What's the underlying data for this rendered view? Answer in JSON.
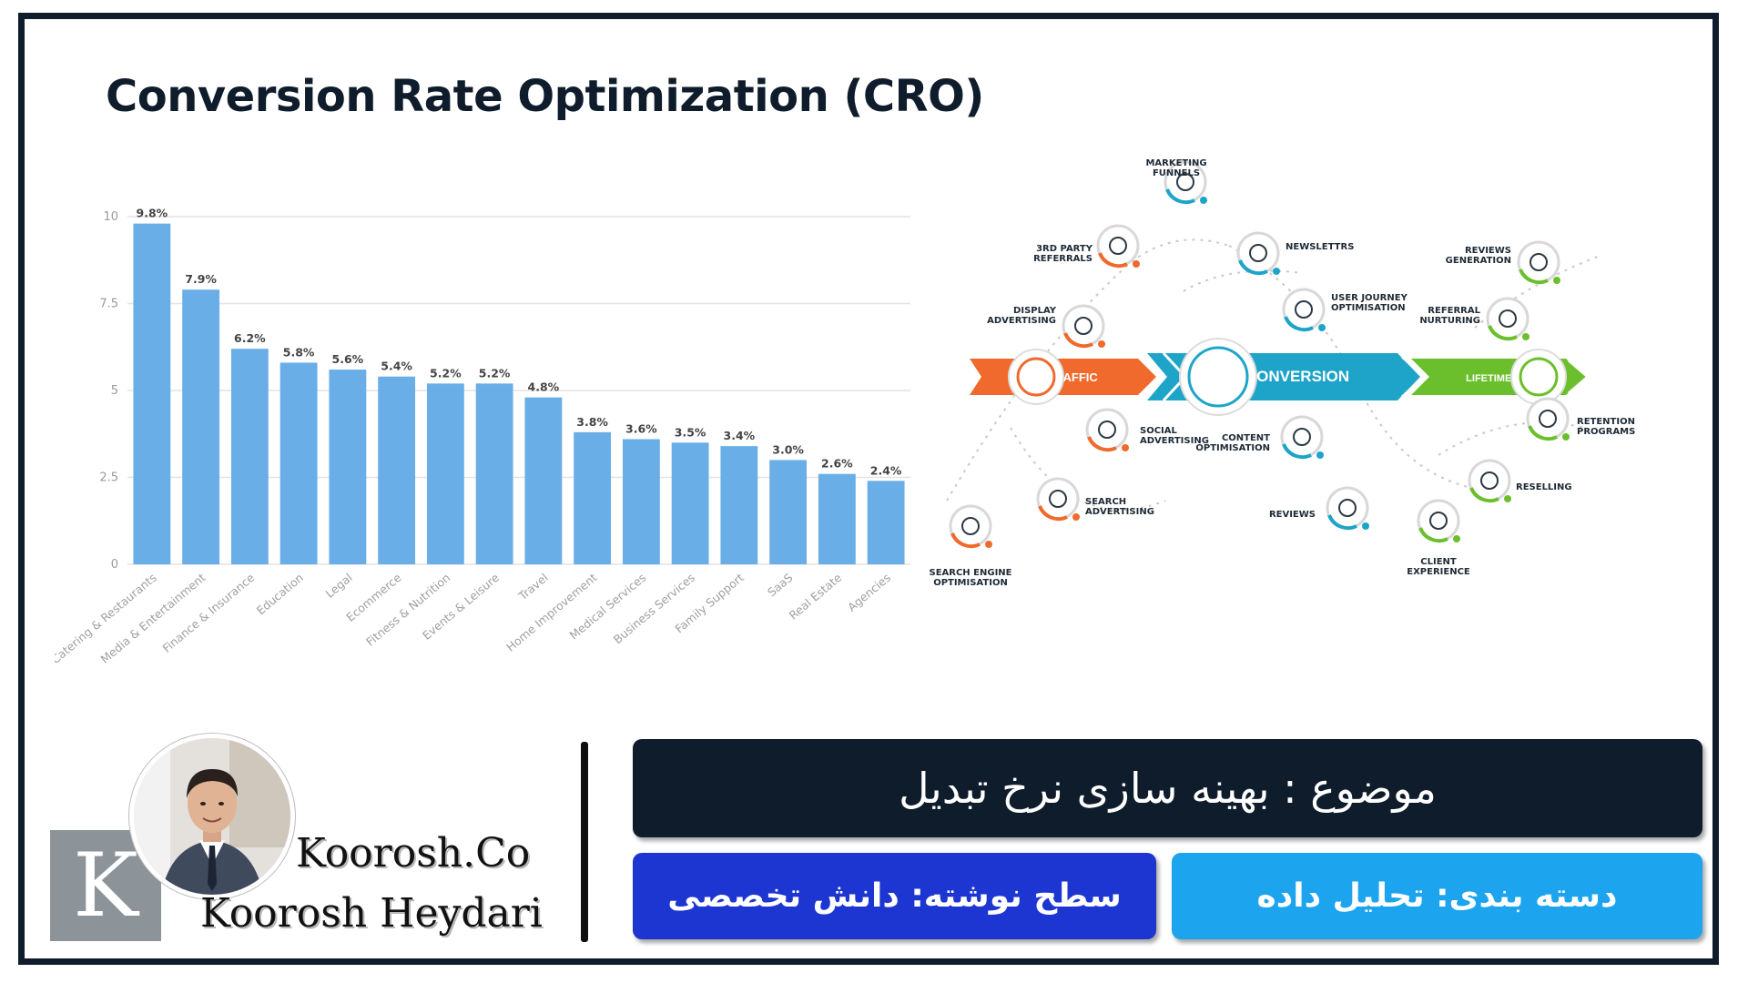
{
  "page": {
    "title": "Conversion Rate Optimization (CRO)"
  },
  "chart_data": {
    "type": "bar",
    "categories": [
      "Catering & Restaurants",
      "Media & Entertainment",
      "Finance & Insurance",
      "Education",
      "Legal",
      "Ecommerce",
      "Fitness & Nutrition",
      "Events & Leisure",
      "Travel",
      "Home Improvement",
      "Medical Services",
      "Business Services",
      "Family Support",
      "SaaS",
      "Real Estate",
      "Agencies"
    ],
    "values": [
      9.8,
      7.9,
      6.2,
      5.8,
      5.6,
      5.4,
      5.2,
      5.2,
      4.8,
      3.8,
      3.6,
      3.5,
      3.4,
      3.0,
      2.6,
      2.4
    ],
    "value_labels": [
      "9.8%",
      "7.9%",
      "6.2%",
      "5.8%",
      "5.6%",
      "5.4%",
      "5.2%",
      "5.2%",
      "4.8%",
      "3.8%",
      "3.6%",
      "3.5%",
      "3.4%",
      "3.0%",
      "2.6%",
      "2.4%"
    ],
    "y_ticks": [
      0,
      2.5,
      5,
      7.5,
      10
    ],
    "y_tick_labels": [
      "0",
      "2.5",
      "5",
      "7.5",
      "10"
    ],
    "ylim": [
      0,
      10
    ],
    "grid": true,
    "bar_color": "#6aaee8"
  },
  "diagram": {
    "bands": [
      {
        "label": "TRAFFIC",
        "color": "#ef6a2c"
      },
      {
        "label": "CONVERSION",
        "color": "#1ea4c9"
      },
      {
        "label": "LIFETIME  VALUE",
        "color": "#6cbf2c"
      }
    ],
    "traffic_nodes": [
      {
        "lines": [
          "3RD PARTY",
          "REFERRALS"
        ],
        "icon": "people-icon"
      },
      {
        "lines": [
          "DISPLAY",
          "ADVERTISING"
        ],
        "icon": "document-icon"
      },
      {
        "lines": [
          "SOCIAL",
          "ADVERTISING"
        ],
        "icon": "social-icon"
      },
      {
        "lines": [
          "SEARCH",
          "ADVERTISING"
        ],
        "icon": "magnifier-icon"
      },
      {
        "lines": [
          "SEARCH ENGINE",
          "OPTIMISATION"
        ],
        "icon": "search-icon"
      }
    ],
    "conversion_nodes": [
      {
        "lines": [
          "MARKETING",
          "FUNNELS"
        ],
        "icon": "funnel-icon"
      },
      {
        "lines": [
          "NEWSLETTRS"
        ],
        "icon": "mail-icon"
      },
      {
        "lines": [
          "USER JOURNEY",
          "OPTIMISATION"
        ],
        "icon": "journey-icon"
      },
      {
        "lines": [
          "CONTENT",
          "OPTIMISATION"
        ],
        "icon": "content-icon"
      },
      {
        "lines": [
          "REVIEWS"
        ],
        "icon": "chat-icon"
      }
    ],
    "value_nodes": [
      {
        "lines": [
          "REVIEWS",
          "GENERATION"
        ],
        "icon": "star-icon"
      },
      {
        "lines": [
          "REFERRAL",
          "NURTURING"
        ],
        "icon": "hand-heart-icon"
      },
      {
        "lines": [
          "RETENTION",
          "PROGRAMS"
        ],
        "icon": "calendar-icon"
      },
      {
        "lines": [
          "RESELLING"
        ],
        "icon": "person-icon"
      },
      {
        "lines": [
          "CLIENT",
          "EXPERIENCE"
        ],
        "icon": "client-icon"
      }
    ],
    "colors": {
      "traffic": "#ef6a2c",
      "conversion": "#1ea4c9",
      "value": "#6cbf2c"
    }
  },
  "brand": {
    "logo_letter": "K",
    "company": "Koorosh.Co",
    "author": "Koorosh Heydari"
  },
  "info": {
    "topic": "موضوع : بهینه سازی نرخ تبدیل",
    "level": "سطح نوشته: دانش تخصصی",
    "category": "دسته بندی: تحلیل داده",
    "colors": {
      "topic": "#0f1c2b",
      "level": "#1d36d1",
      "category": "#1ca4ef"
    }
  }
}
